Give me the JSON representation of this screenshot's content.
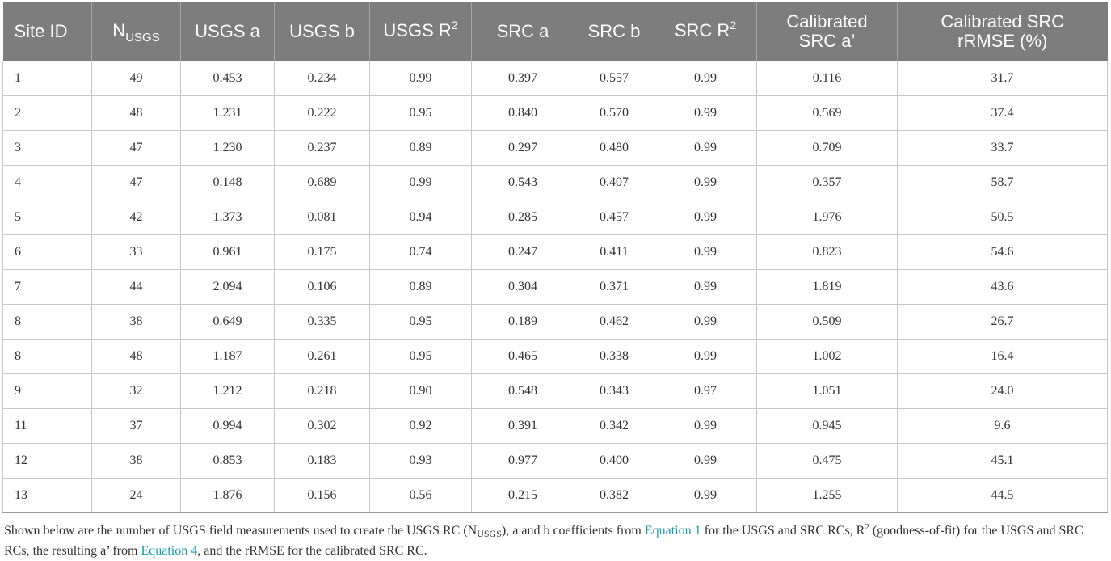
{
  "table": {
    "headers": {
      "site_id": "Site ID",
      "n_main": "N",
      "n_sub": "USGS",
      "usgs_a": "USGS a",
      "usgs_b": "USGS b",
      "usgs_r_main": "USGS R",
      "usgs_r_sup": "2",
      "src_a": "SRC a",
      "src_b": "SRC b",
      "src_r_main": "SRC R",
      "src_r_sup": "2",
      "cal_a_line1": "Calibrated",
      "cal_a_line2": "SRC a’",
      "cal_rmse_line1": "Calibrated SRC",
      "cal_rmse_line2": "rRMSE (%)"
    },
    "rows": [
      {
        "site": "1",
        "n": "49",
        "usgs_a": "0.453",
        "usgs_b": "0.234",
        "usgs_r2": "0.99",
        "src_a": "0.397",
        "src_b": "0.557",
        "src_r2": "0.99",
        "cal_a": "0.116",
        "rrmse": "31.7"
      },
      {
        "site": "2",
        "n": "48",
        "usgs_a": "1.231",
        "usgs_b": "0.222",
        "usgs_r2": "0.95",
        "src_a": "0.840",
        "src_b": "0.570",
        "src_r2": "0.99",
        "cal_a": "0.569",
        "rrmse": "37.4"
      },
      {
        "site": "3",
        "n": "47",
        "usgs_a": "1.230",
        "usgs_b": "0.237",
        "usgs_r2": "0.89",
        "src_a": "0.297",
        "src_b": "0.480",
        "src_r2": "0.99",
        "cal_a": "0.709",
        "rrmse": "33.7"
      },
      {
        "site": "4",
        "n": "47",
        "usgs_a": "0.148",
        "usgs_b": "0.689",
        "usgs_r2": "0.99",
        "src_a": "0.543",
        "src_b": "0.407",
        "src_r2": "0.99",
        "cal_a": "0.357",
        "rrmse": "58.7"
      },
      {
        "site": "5",
        "n": "42",
        "usgs_a": "1.373",
        "usgs_b": "0.081",
        "usgs_r2": "0.94",
        "src_a": "0.285",
        "src_b": "0.457",
        "src_r2": "0.99",
        "cal_a": "1.976",
        "rrmse": "50.5"
      },
      {
        "site": "6",
        "n": "33",
        "usgs_a": "0.961",
        "usgs_b": "0.175",
        "usgs_r2": "0.74",
        "src_a": "0.247",
        "src_b": "0.411",
        "src_r2": "0.99",
        "cal_a": "0.823",
        "rrmse": "54.6"
      },
      {
        "site": "7",
        "n": "44",
        "usgs_a": "2.094",
        "usgs_b": "0.106",
        "usgs_r2": "0.89",
        "src_a": "0.304",
        "src_b": "0.371",
        "src_r2": "0.99",
        "cal_a": "1.819",
        "rrmse": "43.6"
      },
      {
        "site": "8",
        "n": "38",
        "usgs_a": "0.649",
        "usgs_b": "0.335",
        "usgs_r2": "0.95",
        "src_a": "0.189",
        "src_b": "0.462",
        "src_r2": "0.99",
        "cal_a": "0.509",
        "rrmse": "26.7"
      },
      {
        "site": "8",
        "n": "48",
        "usgs_a": "1.187",
        "usgs_b": "0.261",
        "usgs_r2": "0.95",
        "src_a": "0.465",
        "src_b": "0.338",
        "src_r2": "0.99",
        "cal_a": "1.002",
        "rrmse": "16.4"
      },
      {
        "site": "9",
        "n": "32",
        "usgs_a": "1.212",
        "usgs_b": "0.218",
        "usgs_r2": "0.90",
        "src_a": "0.548",
        "src_b": "0.343",
        "src_r2": "0.97",
        "cal_a": "1.051",
        "rrmse": "24.0"
      },
      {
        "site": "11",
        "n": "37",
        "usgs_a": "0.994",
        "usgs_b": "0.302",
        "usgs_r2": "0.92",
        "src_a": "0.391",
        "src_b": "0.342",
        "src_r2": "0.99",
        "cal_a": "0.945",
        "rrmse": "9.6"
      },
      {
        "site": "12",
        "n": "38",
        "usgs_a": "0.853",
        "usgs_b": "0.183",
        "usgs_r2": "0.93",
        "src_a": "0.977",
        "src_b": "0.400",
        "src_r2": "0.99",
        "cal_a": "0.475",
        "rrmse": "45.1"
      },
      {
        "site": "13",
        "n": "24",
        "usgs_a": "1.876",
        "usgs_b": "0.156",
        "usgs_r2": "0.56",
        "src_a": "0.215",
        "src_b": "0.382",
        "src_r2": "0.99",
        "cal_a": "1.255",
        "rrmse": "44.5"
      }
    ]
  },
  "caption": {
    "part1": "Shown below are the number of USGS field measurements used to create the USGS RC (N",
    "part1_sub": "USGS",
    "part2": "), a and b coefficients from ",
    "link1": "Equation 1",
    "part3": " for the USGS and SRC RCs, R",
    "part3_sup": "2",
    "part4": " (goodness-of-fit) for the USGS and SRC RCs, the resulting a’ from ",
    "link2": "Equation 4",
    "part5": ", and the rRMSE for the calibrated SRC RC."
  }
}
